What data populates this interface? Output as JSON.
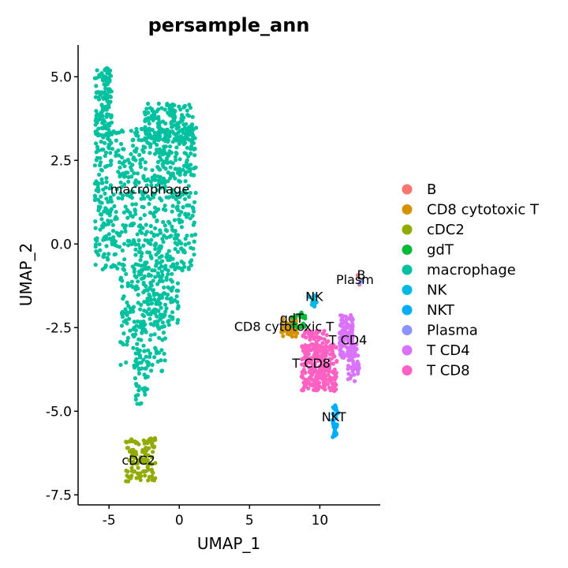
{
  "chart_data": {
    "type": "scatter",
    "title": "persample_ann",
    "xlabel": "UMAP_1",
    "ylabel": "UMAP_2",
    "xlim": [
      -7.2,
      14.3
    ],
    "ylim": [
      -7.8,
      5.95
    ],
    "x_ticks": [
      -5,
      0,
      5,
      10
    ],
    "x_tick_labels": [
      "-5",
      "0",
      "5",
      "10"
    ],
    "y_ticks": [
      5.0,
      2.5,
      0.0,
      -2.5,
      -5.0,
      -7.5
    ],
    "y_tick_labels": [
      "5.0",
      "2.5",
      "0.0",
      "-2.5",
      "-5.0",
      "-7.5"
    ],
    "grid": false,
    "legend_position": "right",
    "series": [
      {
        "name": "B",
        "color": "#F8766D",
        "regions": [
          {
            "x": [
              12.7,
              13.1
            ],
            "y": [
              -1.3,
              -0.9
            ],
            "n": 3
          }
        ]
      },
      {
        "name": "CD8 cytotoxic T",
        "color": "#D39200",
        "regions": [
          {
            "x": [
              7.2,
              8.4
            ],
            "y": [
              -2.8,
              -2.2
            ],
            "n": 45
          }
        ]
      },
      {
        "name": "cDC2",
        "color": "#93AA00",
        "regions": [
          {
            "x": [
              -3.8,
              -1.7
            ],
            "y": [
              -7.1,
              -5.8
            ],
            "n": 110
          }
        ]
      },
      {
        "name": "gdT",
        "color": "#00BA38",
        "regions": [
          {
            "x": [
              8.0,
              9.0
            ],
            "y": [
              -2.5,
              -2.0
            ],
            "n": 20
          }
        ]
      },
      {
        "name": "macrophage",
        "color": "#00C19F",
        "regions": [
          {
            "x": [
              -6.0,
              -4.8
            ],
            "y": [
              3.2,
              5.3
            ],
            "n": 130
          },
          {
            "x": [
              -6.0,
              1.2
            ],
            "y": [
              -0.8,
              3.5
            ],
            "n": 650
          },
          {
            "x": [
              -2.5,
              1.0
            ],
            "y": [
              3.0,
              4.2
            ],
            "n": 180
          },
          {
            "x": [
              -4.2,
              -1.0
            ],
            "y": [
              -3.8,
              -0.8
            ],
            "n": 190
          },
          {
            "x": [
              -2.8,
              0.0
            ],
            "y": [
              -2.5,
              0.3
            ],
            "n": 120
          },
          {
            "x": [
              -3.2,
              -2.2
            ],
            "y": [
              -4.8,
              -3.5
            ],
            "n": 30
          }
        ]
      },
      {
        "name": "NK",
        "color": "#00B9E3",
        "regions": [
          {
            "x": [
              9.2,
              9.8
            ],
            "y": [
              -1.9,
              -1.5
            ],
            "n": 14
          }
        ]
      },
      {
        "name": "NKT",
        "color": "#00ADFA",
        "regions": [
          {
            "x": [
              10.8,
              11.3
            ],
            "y": [
              -5.8,
              -4.8
            ],
            "n": 35
          }
        ]
      },
      {
        "name": "Plasma",
        "color": "#8B93FF",
        "regions": [
          {
            "x": [
              12.8,
              13.1
            ],
            "y": [
              -1.2,
              -1.0
            ],
            "n": 2
          }
        ]
      },
      {
        "name": "T CD4",
        "color": "#DB72FB",
        "regions": [
          {
            "x": [
              11.4,
              12.4
            ],
            "y": [
              -3.4,
              -2.1
            ],
            "n": 110
          },
          {
            "x": [
              12.0,
              12.8
            ],
            "y": [
              -4.1,
              -3.0
            ],
            "n": 50
          }
        ]
      },
      {
        "name": "T CD8",
        "color": "#FF61C3",
        "regions": [
          {
            "x": [
              8.7,
              11.2
            ],
            "y": [
              -4.4,
              -3.0
            ],
            "n": 260
          },
          {
            "x": [
              8.8,
              10.6
            ],
            "y": [
              -3.2,
              -2.6
            ],
            "n": 60
          }
        ]
      }
    ],
    "annotations": [
      {
        "text": "B",
        "x": 12.95,
        "y": -1.05
      },
      {
        "text": "Plasm",
        "x": 12.5,
        "y": -1.2
      },
      {
        "text": "NK",
        "x": 9.6,
        "y": -1.7
      },
      {
        "text": "gdT",
        "x": 8.0,
        "y": -2.35
      },
      {
        "text": "CD8 cytotoxic T",
        "x": 7.45,
        "y": -2.6
      },
      {
        "text": "T CD4",
        "x": 12.0,
        "y": -3.0
      },
      {
        "text": "T CD8",
        "x": 9.4,
        "y": -3.7
      },
      {
        "text": "NKT",
        "x": 11.0,
        "y": -5.3
      },
      {
        "text": "macrophage",
        "x": -2.1,
        "y": 1.5
      },
      {
        "text": "cDC2",
        "x": -2.9,
        "y": -6.6
      }
    ]
  }
}
